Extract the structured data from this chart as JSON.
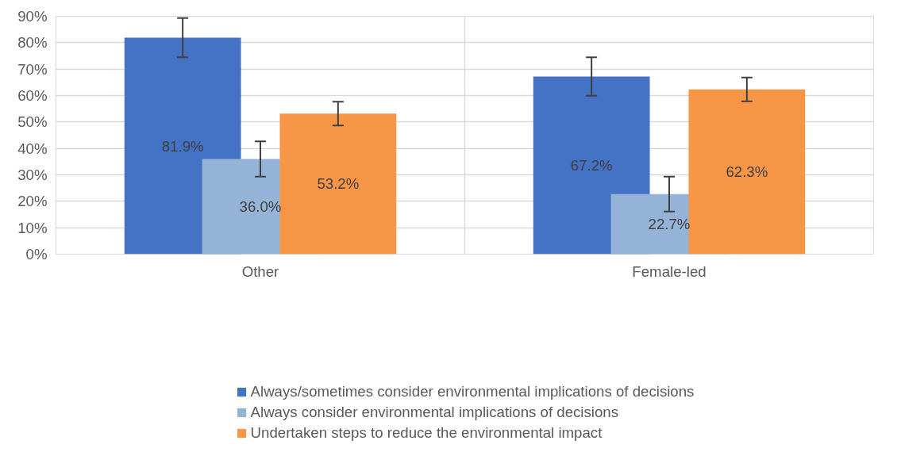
{
  "chart_data": {
    "type": "bar",
    "categories": [
      "Other",
      "Female-led"
    ],
    "series": [
      {
        "name": "Always/sometimes consider environmental implications of decisions",
        "color": "#4472c4",
        "values": [
          81.9,
          67.2
        ],
        "errors": [
          7.4,
          7.3
        ]
      },
      {
        "name": "Always consider environmental implications of decisions",
        "color": "#95b3d7",
        "values": [
          36.0,
          22.7
        ],
        "errors": [
          6.7,
          6.6
        ]
      },
      {
        "name": "Undertaken steps to reduce the environmental impact",
        "color": "#f79646",
        "values": [
          53.2,
          62.3
        ],
        "errors": [
          4.5,
          4.5
        ]
      }
    ],
    "ylim": [
      0,
      90
    ],
    "yticks": [
      {
        "value": 0,
        "label": "0%"
      },
      {
        "value": 10,
        "label": "10%"
      },
      {
        "value": 20,
        "label": "20%"
      },
      {
        "value": 30,
        "label": "30%"
      },
      {
        "value": 40,
        "label": "40%"
      },
      {
        "value": 50,
        "label": "50%"
      },
      {
        "value": 60,
        "label": "60%"
      },
      {
        "value": 70,
        "label": "70%"
      },
      {
        "value": 80,
        "label": "80%"
      },
      {
        "value": 90,
        "label": "90%"
      }
    ],
    "value_labels": [
      [
        "81.9%",
        "67.2%"
      ],
      [
        "36.0%",
        "22.7%"
      ],
      [
        "53.2%",
        "62.3%"
      ]
    ],
    "grid": true,
    "legend": "bottom"
  }
}
